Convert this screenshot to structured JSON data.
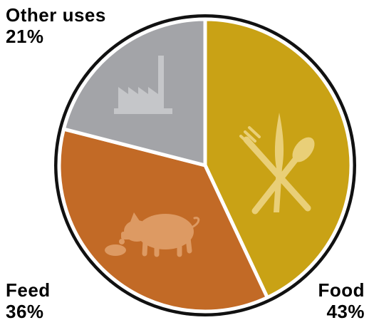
{
  "chart_data": {
    "type": "pie",
    "title": "",
    "slices": [
      {
        "label": "Food",
        "value": 43,
        "value_label": "43%",
        "color": "#c9a215",
        "icon": "fork-spoon-knife-icon"
      },
      {
        "label": "Feed",
        "value": 36,
        "value_label": "36%",
        "color": "#c26a26",
        "icon": "pig-icon"
      },
      {
        "label": "Other uses",
        "value": 21,
        "value_label": "21%",
        "color": "#a3a4a8",
        "icon": "factory-icon"
      }
    ],
    "start_at": "top",
    "direction": "clockwise",
    "outline_color": "#111111",
    "separator_color": "#ffffff"
  }
}
